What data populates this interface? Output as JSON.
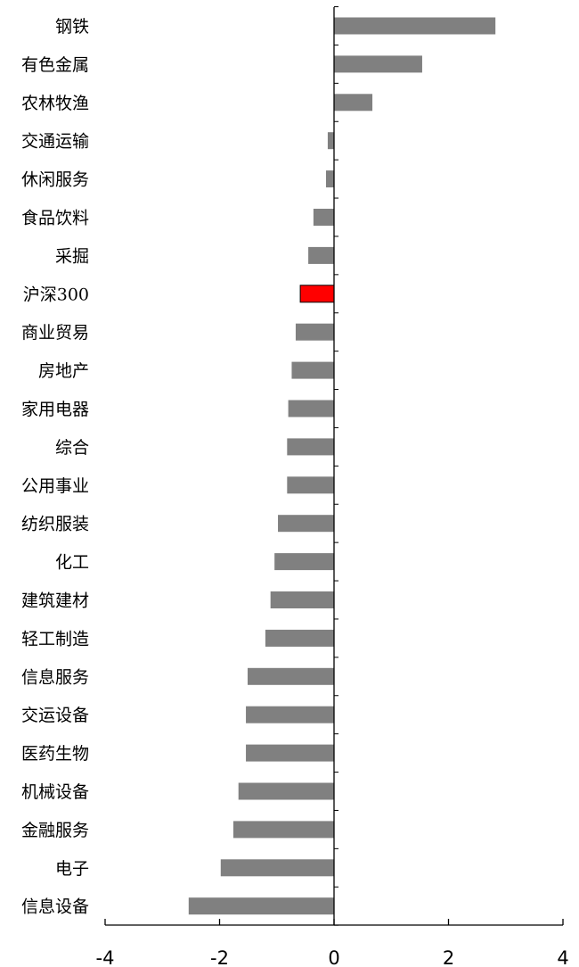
{
  "chart_data": {
    "type": "bar",
    "orientation": "horizontal",
    "categories": [
      "钢铁",
      "有色金属",
      "农林牧渔",
      "交通运输",
      "休闲服务",
      "食品饮料",
      "采掘",
      "沪深300",
      "商业贸易",
      "房地产",
      "家用电器",
      "综合",
      "公用事业",
      "纺织服装",
      "化工",
      "建筑建材",
      "轻工制造",
      "信息服务",
      "交运设备",
      "医药生物",
      "机械设备",
      "金融服务",
      "电子",
      "信息设备"
    ],
    "values": [
      2.82,
      1.54,
      0.67,
      -0.11,
      -0.14,
      -0.36,
      -0.45,
      -0.59,
      -0.67,
      -0.74,
      -0.8,
      -0.82,
      -0.82,
      -0.98,
      -1.04,
      -1.11,
      -1.2,
      -1.51,
      -1.54,
      -1.54,
      -1.67,
      -1.76,
      -1.98,
      -2.54
    ],
    "highlight_category": "沪深300",
    "colors": {
      "bar": "#808080",
      "highlight": "#ff0000",
      "highlight_stroke": "#000000",
      "axis": "#000000"
    },
    "xlim": [
      -4,
      4
    ],
    "xticks": [
      -4,
      -2,
      0,
      2,
      4
    ],
    "xtick_labels": [
      "-4",
      "-2",
      "0",
      "2",
      "4"
    ],
    "title": "",
    "xlabel": "",
    "ylabel": "",
    "grid": false,
    "legend": "none"
  }
}
